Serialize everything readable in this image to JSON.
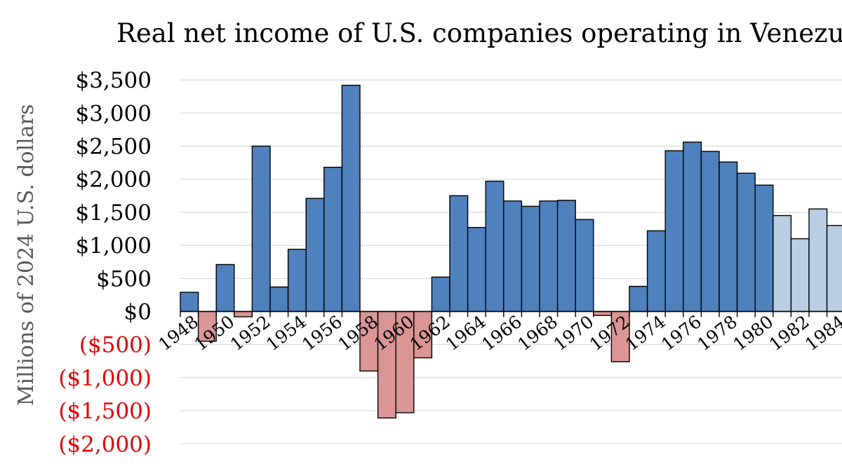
{
  "chart_data": {
    "type": "bar",
    "title": "Real net income of U.S. companies operating in Venezue",
    "ylabel": "Millions of 2024 U.S. dollars",
    "xlabel": "",
    "ylim": [
      -2000,
      3500
    ],
    "grid": true,
    "yticks": [
      {
        "value": 3500,
        "label": "$3,500",
        "color": "#000000"
      },
      {
        "value": 3000,
        "label": "$3,000",
        "color": "#000000"
      },
      {
        "value": 2500,
        "label": "$2,500",
        "color": "#000000"
      },
      {
        "value": 2000,
        "label": "$2,000",
        "color": "#000000"
      },
      {
        "value": 1500,
        "label": "$1,500",
        "color": "#000000"
      },
      {
        "value": 1000,
        "label": "$1,000",
        "color": "#000000"
      },
      {
        "value": 500,
        "label": "$500",
        "color": "#000000"
      },
      {
        "value": 0,
        "label": "$0",
        "color": "#000000"
      },
      {
        "value": -500,
        "label": "($500)",
        "color": "#e00000"
      },
      {
        "value": -1000,
        "label": "($1,000)",
        "color": "#e00000"
      },
      {
        "value": -1500,
        "label": "($1,500)",
        "color": "#e00000"
      },
      {
        "value": -2000,
        "label": "($2,000)",
        "color": "#e00000"
      }
    ],
    "xticks": [
      "1948",
      "1950",
      "1952",
      "1954",
      "1956",
      "1958",
      "1960",
      "1962",
      "1964",
      "1966",
      "1968",
      "1970",
      "1972",
      "1974",
      "1976",
      "1978",
      "1980",
      "1982",
      "1984"
    ],
    "categories": [
      "1948",
      "1949",
      "1950",
      "1951",
      "1952",
      "1953",
      "1954",
      "1955",
      "1956",
      "1957",
      "1958",
      "1959",
      "1960",
      "1961",
      "1962",
      "1963",
      "1964",
      "1965",
      "1966",
      "1967",
      "1968",
      "1969",
      "1970",
      "1971",
      "1972",
      "1973",
      "1974",
      "1975",
      "1976",
      "1977",
      "1978",
      "1979",
      "1980",
      "1981",
      "1982",
      "1983",
      "1984"
    ],
    "values": [
      290,
      -450,
      710,
      -80,
      2500,
      370,
      940,
      1710,
      2180,
      3420,
      -900,
      -1610,
      -1530,
      -700,
      520,
      1750,
      1270,
      1970,
      1670,
      1590,
      1670,
      1680,
      1390,
      -60,
      -760,
      380,
      1220,
      2430,
      2560,
      2420,
      2260,
      2090,
      1910,
      1450,
      1100,
      1550,
      1300
    ],
    "colors": {
      "positive": "#4f81bd",
      "negative": "#d99694",
      "light": "#b9cde5"
    },
    "light_from": "1981"
  }
}
